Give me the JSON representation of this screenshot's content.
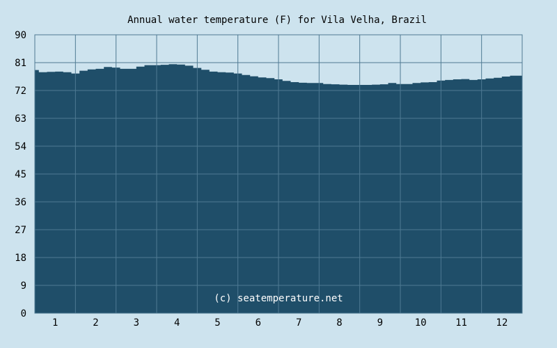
{
  "chart_data": {
    "type": "area",
    "title": "Annual water temperature (F) for Vila Velha, Brazil",
    "watermark": "(c) seatemperature.net",
    "xlabel": "",
    "ylabel": "",
    "ylim": [
      0,
      90
    ],
    "xlim": [
      0.5,
      12.5
    ],
    "yticks": [
      "0",
      "9",
      "18",
      "27",
      "36",
      "45",
      "54",
      "63",
      "72",
      "81",
      "90"
    ],
    "xticks": [
      "1",
      "2",
      "3",
      "4",
      "5",
      "6",
      "7",
      "8",
      "9",
      "10",
      "11",
      "12"
    ],
    "grid": true,
    "colors": {
      "fill": "#1f4e69",
      "grid": "#4f7a93",
      "background": "#cde3ee"
    },
    "x": [
      0.5,
      0.6,
      0.8,
      1.0,
      1.2,
      1.4,
      1.6,
      1.8,
      2.0,
      2.2,
      2.4,
      2.6,
      2.8,
      3.0,
      3.2,
      3.4,
      3.6,
      3.8,
      4.0,
      4.2,
      4.4,
      4.6,
      4.8,
      5.0,
      5.2,
      5.4,
      5.6,
      5.8,
      6.0,
      6.2,
      6.4,
      6.6,
      6.8,
      7.0,
      7.2,
      7.4,
      7.6,
      7.8,
      8.0,
      8.2,
      8.4,
      8.6,
      8.8,
      9.0,
      9.2,
      9.4,
      9.6,
      9.8,
      10.0,
      10.2,
      10.4,
      10.6,
      10.8,
      11.0,
      11.2,
      11.4,
      11.6,
      11.8,
      12.0,
      12.2,
      12.5
    ],
    "y": [
      78.6,
      77.9,
      78.0,
      78.1,
      77.9,
      77.5,
      78.4,
      78.8,
      79.0,
      79.6,
      79.4,
      79.0,
      79.0,
      79.7,
      80.2,
      80.2,
      80.3,
      80.5,
      80.4,
      80.0,
      79.3,
      78.7,
      78.1,
      77.9,
      77.8,
      77.5,
      77.0,
      76.6,
      76.2,
      76.0,
      75.6,
      75.1,
      74.7,
      74.5,
      74.4,
      74.4,
      74.1,
      74.0,
      73.9,
      73.8,
      73.8,
      73.8,
      73.9,
      74.0,
      74.4,
      74.1,
      74.1,
      74.4,
      74.6,
      74.7,
      75.2,
      75.4,
      75.6,
      75.7,
      75.4,
      75.6,
      75.9,
      76.1,
      76.5,
      76.8,
      76.8
    ]
  }
}
